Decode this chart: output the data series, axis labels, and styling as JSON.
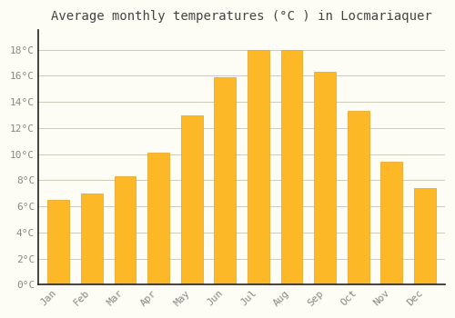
{
  "title": "Average monthly temperatures (°C ) in Locmariaquer",
  "months": [
    "Jan",
    "Feb",
    "Mar",
    "Apr",
    "May",
    "Jun",
    "Jul",
    "Aug",
    "Sep",
    "Oct",
    "Nov",
    "Dec"
  ],
  "values": [
    6.5,
    7.0,
    8.3,
    10.1,
    13.0,
    15.9,
    18.0,
    18.0,
    16.3,
    13.3,
    9.4,
    7.4
  ],
  "bar_color": "#FDB827",
  "bar_edge_color": "#E8A020",
  "background_color": "#FDFDF5",
  "grid_color": "#CCCCBB",
  "tick_label_color": "#888888",
  "title_color": "#444444",
  "ylim": [
    0,
    19.5
  ],
  "yticks": [
    0,
    2,
    4,
    6,
    8,
    10,
    12,
    14,
    16,
    18
  ],
  "title_fontsize": 10,
  "tick_fontsize": 8,
  "font_family": "monospace",
  "bar_width": 0.65
}
